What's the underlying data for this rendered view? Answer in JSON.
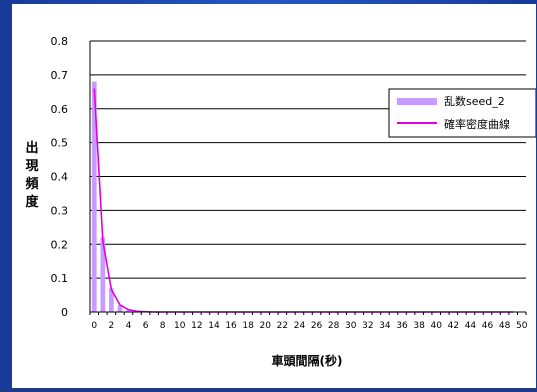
{
  "colors": {
    "frame": "#1e3a8a",
    "panel": "#ffffff",
    "bar": "#c79cff",
    "curve": "#e000e0",
    "axis": "#000000"
  },
  "chart_data": {
    "type": "bar",
    "title": "",
    "xlabel": "車頭間隔(秒)",
    "ylabel": "出現頻度",
    "ylim": [
      0,
      0.8
    ],
    "yticks": [
      0,
      0.1,
      0.2,
      0.3,
      0.4,
      0.5,
      0.6,
      0.7,
      0.8
    ],
    "ytick_labels": [
      "0",
      "0.1",
      "0.2",
      "0.3",
      "0.4",
      "0.5",
      "0.6",
      "0.7",
      "0.8"
    ],
    "xlim": [
      0,
      51
    ],
    "xticks": [
      0,
      2,
      4,
      6,
      8,
      10,
      12,
      14,
      16,
      18,
      20,
      22,
      24,
      26,
      28,
      30,
      32,
      34,
      36,
      38,
      40,
      42,
      44,
      46,
      48,
      50
    ],
    "xtick_labels": [
      "0",
      "2",
      "4",
      "6",
      "8",
      "10",
      "12",
      "14",
      "16",
      "18",
      "20",
      "22",
      "24",
      "26",
      "28",
      "30",
      "32",
      "34",
      "36",
      "38",
      "40",
      "42",
      "44",
      "46",
      "48",
      "50"
    ],
    "grid": "horizontal",
    "legend_position": "right",
    "series": [
      {
        "name": "乱数seed_2",
        "type": "bar",
        "x": [
          1,
          2,
          3,
          4,
          5
        ],
        "values": [
          0.68,
          0.22,
          0.07,
          0.02,
          0.006
        ]
      },
      {
        "name": "確率密度曲線",
        "type": "line",
        "x": [
          1,
          2,
          3,
          4,
          5,
          6,
          7,
          8,
          9,
          10,
          11,
          12,
          13,
          14,
          15,
          16,
          17,
          18,
          19,
          20,
          21,
          22,
          23,
          24,
          25,
          26,
          27,
          28,
          29,
          30,
          31,
          32,
          33,
          34,
          35,
          36,
          37,
          38,
          39,
          40,
          41,
          42,
          43,
          44,
          45,
          46,
          47,
          48,
          49,
          50
        ],
        "values": [
          0.66,
          0.21,
          0.066,
          0.021,
          0.007,
          0.002,
          0.001,
          0,
          0,
          0,
          0,
          0,
          0,
          0,
          0,
          0,
          0,
          0,
          0,
          0,
          0,
          0,
          0,
          0,
          0,
          0,
          0,
          0,
          0,
          0,
          0,
          0,
          0,
          0,
          0,
          0,
          0,
          0,
          0,
          0,
          0,
          0,
          0,
          0,
          0,
          0,
          0,
          0,
          0,
          0
        ]
      }
    ]
  }
}
